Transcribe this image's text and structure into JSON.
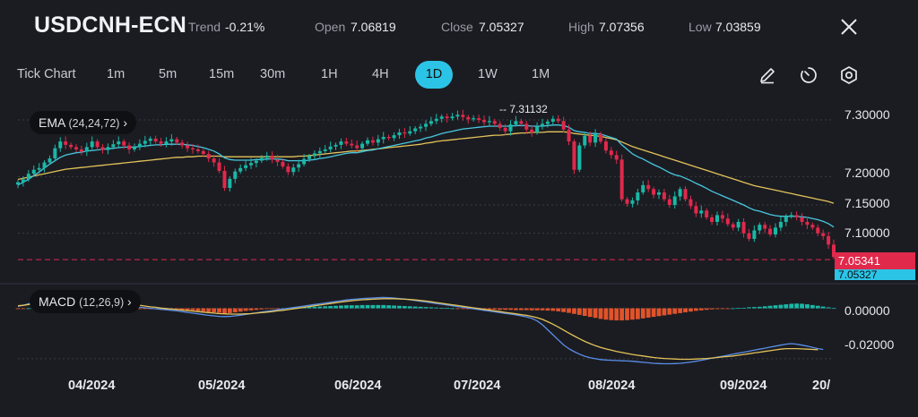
{
  "header": {
    "symbol": "USDCNH-ECN",
    "trend_label": "Trend",
    "trend_value": "-0.21%",
    "open_label": "Open",
    "open_value": "7.06819",
    "close_label": "Close",
    "close_value": "7.05327",
    "high_label": "High",
    "high_value": "7.07356",
    "low_label": "Low",
    "low_value": "7.03859"
  },
  "toolbar": {
    "timeframes": [
      "Tick Chart",
      "1m",
      "5m",
      "15m",
      "30m",
      "1H",
      "4H",
      "1D",
      "1W",
      "1M"
    ],
    "active_timeframe": "1D",
    "icons": [
      "draw-icon",
      "timer-icon",
      "settings-icon"
    ]
  },
  "colors": {
    "background": "#1b1c22",
    "up": "#19b8a6",
    "down": "#e0294b",
    "ema_fast": "#48c7e0",
    "ema_slow": "#e3c35a",
    "macd_line": "#5a8ee8",
    "signal_line": "#e3c35a",
    "hist_pos": "#19b8a6",
    "hist_neg": "#e0532b",
    "accent": "#2cc4e6"
  },
  "chart_data": [
    {
      "type": "candlestick",
      "indicator_label": "EMA",
      "indicator_params": "(24,24,72)",
      "y_ticks": [
        "7.30000",
        "7.20000",
        "7.15000",
        "7.10000"
      ],
      "ylim": [
        7.03,
        7.33
      ],
      "x_ticks": [
        "04/2024",
        "05/2024",
        "06/2024",
        "07/2024",
        "08/2024",
        "09/2024",
        "20/"
      ],
      "max_annotation": "7.31132",
      "last_price_tag": "7.05341",
      "close_price_tag": "7.05327",
      "close_series": [
        7.19,
        7.195,
        7.205,
        7.212,
        7.215,
        7.225,
        7.232,
        7.25,
        7.262,
        7.256,
        7.252,
        7.248,
        7.244,
        7.252,
        7.262,
        7.252,
        7.247,
        7.252,
        7.257,
        7.262,
        7.255,
        7.248,
        7.252,
        7.258,
        7.263,
        7.267,
        7.262,
        7.258,
        7.262,
        7.266,
        7.26,
        7.255,
        7.25,
        7.248,
        7.245,
        7.24,
        7.232,
        7.225,
        7.21,
        7.18,
        7.196,
        7.209,
        7.215,
        7.22,
        7.224,
        7.228,
        7.233,
        7.237,
        7.23,
        7.226,
        7.218,
        7.208,
        7.216,
        7.222,
        7.231,
        7.236,
        7.241,
        7.245,
        7.248,
        7.253,
        7.256,
        7.262,
        7.258,
        7.255,
        7.25,
        7.258,
        7.264,
        7.26,
        7.266,
        7.27,
        7.268,
        7.273,
        7.278,
        7.276,
        7.28,
        7.285,
        7.288,
        7.293,
        7.298,
        7.302,
        7.306,
        7.303,
        7.306,
        7.309,
        7.305,
        7.301,
        7.303,
        7.3,
        7.296,
        7.298,
        7.293,
        7.286,
        7.28,
        7.292,
        7.298,
        7.293,
        7.283,
        7.278,
        7.288,
        7.293,
        7.297,
        7.302,
        7.298,
        7.283,
        7.262,
        7.212,
        7.255,
        7.272,
        7.26,
        7.275,
        7.262,
        7.246,
        7.238,
        7.23,
        7.16,
        7.152,
        7.158,
        7.172,
        7.185,
        7.178,
        7.168,
        7.172,
        7.16,
        7.15,
        7.165,
        7.178,
        7.16,
        7.148,
        7.135,
        7.14,
        7.128,
        7.12,
        7.132,
        7.126,
        7.116,
        7.11,
        7.12,
        7.1,
        7.09,
        7.105,
        7.115,
        7.108,
        7.098,
        7.11,
        7.12,
        7.13,
        7.132,
        7.128,
        7.12,
        7.115,
        7.11,
        7.1,
        7.095,
        7.08,
        7.058
      ],
      "ema_fast": [
        7.185,
        7.19,
        7.195,
        7.202,
        7.208,
        7.215,
        7.222,
        7.228,
        7.234,
        7.238,
        7.24,
        7.242,
        7.243,
        7.245,
        7.246,
        7.247,
        7.248,
        7.249,
        7.25,
        7.251,
        7.252,
        7.252,
        7.252,
        7.253,
        7.254,
        7.255,
        7.256,
        7.256,
        7.257,
        7.257,
        7.257,
        7.257,
        7.256,
        7.255,
        7.253,
        7.251,
        7.248,
        7.245,
        7.24,
        7.233,
        7.23,
        7.229,
        7.229,
        7.229,
        7.229,
        7.23,
        7.23,
        7.231,
        7.231,
        7.231,
        7.23,
        7.228,
        7.228,
        7.228,
        7.228,
        7.229,
        7.23,
        7.232,
        7.233,
        7.235,
        7.237,
        7.239,
        7.241,
        7.242,
        7.242,
        7.244,
        7.246,
        7.247,
        7.249,
        7.251,
        7.253,
        7.255,
        7.257,
        7.259,
        7.261,
        7.263,
        7.265,
        7.268,
        7.27,
        7.273,
        7.276,
        7.278,
        7.28,
        7.282,
        7.284,
        7.285,
        7.286,
        7.287,
        7.288,
        7.289,
        7.289,
        7.289,
        7.289,
        7.289,
        7.29,
        7.29,
        7.29,
        7.289,
        7.289,
        7.289,
        7.29,
        7.291,
        7.291,
        7.29,
        7.287,
        7.281,
        7.279,
        7.278,
        7.276,
        7.276,
        7.275,
        7.272,
        7.269,
        7.266,
        7.256,
        7.248,
        7.24,
        7.235,
        7.231,
        7.226,
        7.221,
        7.217,
        7.212,
        7.207,
        7.203,
        7.201,
        7.197,
        7.193,
        7.188,
        7.184,
        7.179,
        7.174,
        7.17,
        7.166,
        7.162,
        7.158,
        7.154,
        7.15,
        7.145,
        7.141,
        7.139,
        7.136,
        7.133,
        7.131,
        7.13,
        7.13,
        7.13,
        7.13,
        7.129,
        7.128,
        7.126,
        7.124,
        7.121,
        7.117,
        7.111
      ],
      "ema_slow": [
        7.195,
        7.197,
        7.199,
        7.201,
        7.203,
        7.205,
        7.207,
        7.209,
        7.211,
        7.213,
        7.214,
        7.215,
        7.216,
        7.217,
        7.218,
        7.219,
        7.22,
        7.221,
        7.222,
        7.223,
        7.224,
        7.225,
        7.226,
        7.227,
        7.228,
        7.229,
        7.23,
        7.231,
        7.232,
        7.233,
        7.234,
        7.234,
        7.235,
        7.235,
        7.236,
        7.236,
        7.236,
        7.236,
        7.236,
        7.235,
        7.235,
        7.235,
        7.235,
        7.235,
        7.235,
        7.235,
        7.235,
        7.235,
        7.235,
        7.235,
        7.235,
        7.235,
        7.235,
        7.236,
        7.236,
        7.237,
        7.238,
        7.239,
        7.24,
        7.241,
        7.242,
        7.243,
        7.244,
        7.245,
        7.245,
        7.246,
        7.247,
        7.248,
        7.249,
        7.25,
        7.251,
        7.252,
        7.253,
        7.254,
        7.255,
        7.256,
        7.257,
        7.259,
        7.26,
        7.262,
        7.263,
        7.264,
        7.265,
        7.266,
        7.267,
        7.268,
        7.269,
        7.27,
        7.271,
        7.272,
        7.273,
        7.273,
        7.274,
        7.275,
        7.276,
        7.277,
        7.277,
        7.278,
        7.278,
        7.278,
        7.279,
        7.279,
        7.279,
        7.279,
        7.278,
        7.276,
        7.275,
        7.274,
        7.273,
        7.272,
        7.271,
        7.269,
        7.267,
        7.265,
        7.261,
        7.257,
        7.253,
        7.25,
        7.247,
        7.244,
        7.241,
        7.238,
        7.235,
        7.232,
        7.229,
        7.226,
        7.223,
        7.22,
        7.217,
        7.214,
        7.211,
        7.208,
        7.205,
        7.202,
        7.199,
        7.196,
        7.193,
        7.19,
        7.187,
        7.184,
        7.182,
        7.18,
        7.178,
        7.176,
        7.174,
        7.172,
        7.17,
        7.168,
        7.166,
        7.164,
        7.162,
        7.16,
        7.158,
        7.156,
        7.153
      ]
    },
    {
      "type": "bar",
      "indicator_label": "MACD",
      "indicator_params": "(12,26,9)",
      "y_ticks": [
        "0.00000",
        "-0.02000"
      ],
      "ylim": [
        -0.025,
        0.008
      ],
      "histogram": [
        -0.0003,
        -0.0002,
        0.0,
        0.0002,
        0.0004,
        0.0005,
        0.0006,
        0.0007,
        0.0008,
        0.0007,
        0.0006,
        0.0005,
        0.0004,
        0.0003,
        0.0003,
        0.0002,
        0.0002,
        0.0001,
        0.0001,
        0.0001,
        0.0,
        -0.0001,
        -0.0001,
        -0.0002,
        -0.0002,
        -0.0003,
        -0.0003,
        -0.0003,
        -0.0004,
        -0.0004,
        -0.0005,
        -0.0006,
        -0.0007,
        -0.0008,
        -0.001,
        -0.0012,
        -0.0014,
        -0.0016,
        -0.0018,
        -0.002,
        -0.0019,
        -0.0016,
        -0.0013,
        -0.001,
        -0.0008,
        -0.0006,
        -0.0004,
        -0.0002,
        -0.0001,
        -0.0001,
        0.0,
        0.0001,
        0.0002,
        0.0003,
        0.0004,
        0.0005,
        0.0006,
        0.0007,
        0.0008,
        0.0009,
        0.001,
        0.0011,
        0.0012,
        0.0012,
        0.0012,
        0.0013,
        0.0013,
        0.0013,
        0.0013,
        0.0013,
        0.0012,
        0.0011,
        0.001,
        0.0009,
        0.0008,
        0.0007,
        0.0006,
        0.0005,
        0.0004,
        0.0003,
        0.0002,
        0.0001,
        0.0,
        -0.0001,
        -0.0002,
        -0.0003,
        -0.0003,
        -0.0004,
        -0.0004,
        -0.0005,
        -0.0005,
        -0.0006,
        -0.0006,
        -0.0006,
        -0.0007,
        -0.0007,
        -0.0007,
        -0.0008,
        -0.0008,
        -0.0008,
        -0.0009,
        -0.001,
        -0.0012,
        -0.0015,
        -0.0018,
        -0.0022,
        -0.0026,
        -0.003,
        -0.0034,
        -0.0038,
        -0.0042,
        -0.0045,
        -0.0047,
        -0.0048,
        -0.0048,
        -0.0047,
        -0.0045,
        -0.0043,
        -0.004,
        -0.0037,
        -0.0034,
        -0.0031,
        -0.0028,
        -0.0025,
        -0.0022,
        -0.0019,
        -0.0016,
        -0.0013,
        -0.001,
        -0.0008,
        -0.0006,
        -0.0004,
        -0.0003,
        -0.0002,
        -0.0001,
        0.0,
        0.0001,
        0.0002,
        0.0004,
        0.0005,
        0.0006,
        0.0008,
        0.001,
        0.0012,
        0.0014,
        0.0016,
        0.0018,
        0.0019,
        0.0018,
        0.0016,
        0.0013,
        0.001,
        0.0007,
        0.0004,
        0.0001
      ],
      "macd_line": [
        0.0008,
        0.0012,
        0.0018,
        0.0024,
        0.003,
        0.0035,
        0.004,
        0.0044,
        0.0047,
        0.0049,
        0.005,
        0.0049,
        0.0047,
        0.0044,
        0.004,
        0.0035,
        0.003,
        0.0025,
        0.002,
        0.0015,
        0.0011,
        0.0008,
        0.0006,
        0.0004,
        0.0002,
        0.0,
        -0.0002,
        -0.0004,
        -0.0006,
        -0.0008,
        -0.001,
        -0.0013,
        -0.0016,
        -0.0019,
        -0.0022,
        -0.0025,
        -0.0028,
        -0.003,
        -0.0032,
        -0.0033,
        -0.0032,
        -0.003,
        -0.0027,
        -0.0024,
        -0.0021,
        -0.0018,
        -0.0015,
        -0.0012,
        -0.0009,
        -0.0006,
        -0.0003,
        0.0,
        0.0003,
        0.0006,
        0.0009,
        0.0012,
        0.0015,
        0.0018,
        0.0021,
        0.0024,
        0.0027,
        0.003,
        0.0033,
        0.0035,
        0.0037,
        0.0039,
        0.004,
        0.0041,
        0.0042,
        0.0043,
        0.0042,
        0.0041,
        0.0039,
        0.0037,
        0.0034,
        0.0031,
        0.0028,
        0.0025,
        0.0022,
        0.0019,
        0.0016,
        0.0013,
        0.001,
        0.0007,
        0.0004,
        0.0001,
        -0.0002,
        -0.0005,
        -0.0008,
        -0.0011,
        -0.0014,
        -0.0017,
        -0.002,
        -0.0023,
        -0.0026,
        -0.003,
        -0.0034,
        -0.004,
        -0.005,
        -0.0065,
        -0.0085,
        -0.0105,
        -0.0125,
        -0.0145,
        -0.016,
        -0.0172,
        -0.0182,
        -0.019,
        -0.0196,
        -0.02,
        -0.0203,
        -0.0205,
        -0.0206,
        -0.0207,
        -0.0208,
        -0.0209,
        -0.021,
        -0.0212,
        -0.0214,
        -0.0216,
        -0.0218,
        -0.0219,
        -0.022,
        -0.022,
        -0.0219,
        -0.0218,
        -0.0216,
        -0.0213,
        -0.021,
        -0.0206,
        -0.0202,
        -0.0198,
        -0.0194,
        -0.019,
        -0.0186,
        -0.0182,
        -0.0178,
        -0.0174,
        -0.017,
        -0.0166,
        -0.0162,
        -0.0158,
        -0.0154,
        -0.015,
        -0.0146,
        -0.0142,
        -0.014,
        -0.0142,
        -0.0146,
        -0.015,
        -0.0155,
        -0.016,
        -0.0163
      ],
      "signal_line": [
        0.001,
        0.0012,
        0.0015,
        0.0019,
        0.0023,
        0.0027,
        0.0031,
        0.0035,
        0.0038,
        0.0041,
        0.0043,
        0.0044,
        0.0044,
        0.0043,
        0.0041,
        0.0038,
        0.0035,
        0.0032,
        0.0028,
        0.0024,
        0.0021,
        0.0018,
        0.0015,
        0.0012,
        0.0009,
        0.0006,
        0.0004,
        0.0001,
        -0.0001,
        -0.0003,
        -0.0005,
        -0.0007,
        -0.0009,
        -0.0011,
        -0.0013,
        -0.0015,
        -0.0017,
        -0.0019,
        -0.0021,
        -0.0022,
        -0.0023,
        -0.0023,
        -0.0023,
        -0.0022,
        -0.0021,
        -0.0019,
        -0.0017,
        -0.0015,
        -0.0013,
        -0.001,
        -0.0008,
        -0.0005,
        -0.0002,
        0.0001,
        0.0004,
        0.0007,
        0.001,
        0.0013,
        0.0016,
        0.0019,
        0.0022,
        0.0025,
        0.0028,
        0.003,
        0.0032,
        0.0034,
        0.0035,
        0.0036,
        0.0037,
        0.0038,
        0.0038,
        0.0038,
        0.0037,
        0.0036,
        0.0035,
        0.0033,
        0.0031,
        0.0029,
        0.0026,
        0.0023,
        0.002,
        0.0017,
        0.0014,
        0.0011,
        0.0008,
        0.0005,
        0.0002,
        -0.0001,
        -0.0004,
        -0.0007,
        -0.001,
        -0.0013,
        -0.0016,
        -0.0019,
        -0.0022,
        -0.0025,
        -0.0028,
        -0.0032,
        -0.0037,
        -0.0044,
        -0.0053,
        -0.0063,
        -0.0074,
        -0.0086,
        -0.0098,
        -0.011,
        -0.0121,
        -0.0131,
        -0.014,
        -0.0148,
        -0.0155,
        -0.0161,
        -0.0166,
        -0.0171,
        -0.0175,
        -0.0179,
        -0.0183,
        -0.0186,
        -0.0189,
        -0.0192,
        -0.0195,
        -0.0197,
        -0.0199,
        -0.02,
        -0.0201,
        -0.0202,
        -0.0202,
        -0.0202,
        -0.0201,
        -0.02,
        -0.0199,
        -0.0197,
        -0.0195,
        -0.0193,
        -0.0191,
        -0.0189,
        -0.0186,
        -0.0183,
        -0.018,
        -0.0177,
        -0.0174,
        -0.0171,
        -0.0168,
        -0.0165,
        -0.0162,
        -0.016,
        -0.016,
        -0.016,
        -0.0161,
        -0.0162,
        -0.0163,
        -0.0164
      ]
    }
  ]
}
